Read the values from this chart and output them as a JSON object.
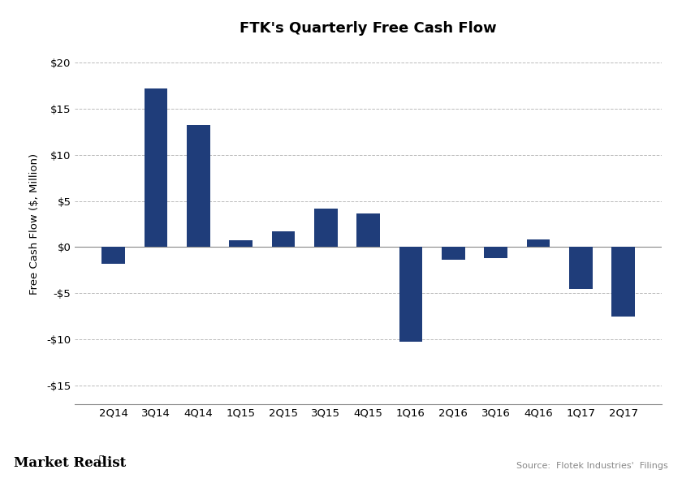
{
  "title": "FTK's Quarterly Free Cash Flow",
  "ylabel": "Free Cash Flow ($, Million)",
  "categories": [
    "2Q14",
    "3Q14",
    "4Q14",
    "1Q15",
    "2Q15",
    "3Q15",
    "4Q15",
    "1Q16",
    "2Q16",
    "3Q16",
    "4Q16",
    "1Q17",
    "2Q17"
  ],
  "values": [
    -1.8,
    17.2,
    13.2,
    0.7,
    1.7,
    4.2,
    3.6,
    -10.2,
    -1.4,
    -1.2,
    0.8,
    -4.5,
    -7.5
  ],
  "bar_color": "#1F3D7A",
  "ylim": [
    -17,
    22
  ],
  "yticks": [
    -15,
    -10,
    -5,
    0,
    5,
    10,
    15,
    20
  ],
  "background_color": "#ffffff",
  "grid_color": "#bbbbbb",
  "source_text": "Source:  Flotek Industries'  Filings",
  "branding_text": "Market Realist",
  "title_fontsize": 13,
  "label_fontsize": 9.5,
  "tick_fontsize": 9.5
}
